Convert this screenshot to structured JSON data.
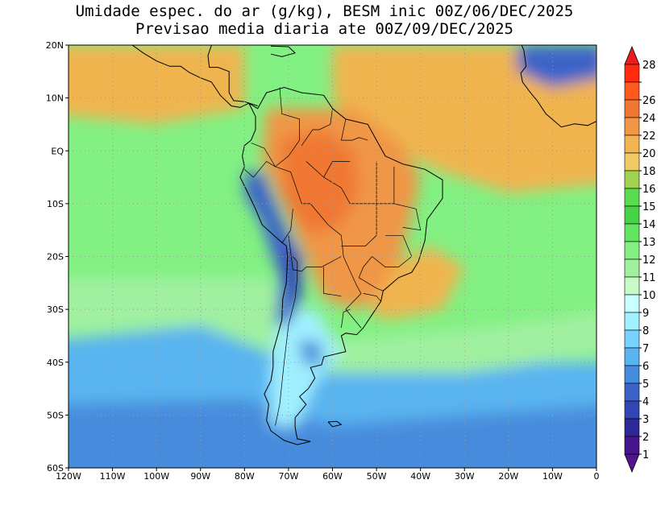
{
  "title_line1": "Umidade espec. do ar (g/kg), BESM inic 00Z/06/DEC/2025",
  "title_line2": "Previsao media diaria ate 00Z/09/DEC/2025",
  "lon_ticks": [
    {
      "lon": -120,
      "label": "120W"
    },
    {
      "lon": -110,
      "label": "110W"
    },
    {
      "lon": -100,
      "label": "100W"
    },
    {
      "lon": -90,
      "label": "90W"
    },
    {
      "lon": -80,
      "label": "80W"
    },
    {
      "lon": -70,
      "label": "70W"
    },
    {
      "lon": -60,
      "label": "60W"
    },
    {
      "lon": -50,
      "label": "50W"
    },
    {
      "lon": -40,
      "label": "40W"
    },
    {
      "lon": -30,
      "label": "30W"
    },
    {
      "lon": -20,
      "label": "20W"
    },
    {
      "lon": -10,
      "label": "10W"
    },
    {
      "lon": 0,
      "label": "0"
    }
  ],
  "lat_ticks": [
    {
      "lat": 20,
      "label": "20N"
    },
    {
      "lat": 10,
      "label": "10N"
    },
    {
      "lat": 0,
      "label": "EQ"
    },
    {
      "lat": -10,
      "label": "10S"
    },
    {
      "lat": -20,
      "label": "20S"
    },
    {
      "lat": -30,
      "label": "30S"
    },
    {
      "lat": -40,
      "label": "40S"
    },
    {
      "lat": -50,
      "label": "50S"
    },
    {
      "lat": -60,
      "label": "60S"
    }
  ],
  "extent": {
    "lon_min": -120,
    "lon_max": 0,
    "lat_min": -60,
    "lat_max": 20
  },
  "colorbar": {
    "levels": [
      "28",
      "26",
      "24",
      "22",
      "20",
      "18",
      "16",
      "15",
      "14",
      "13",
      "12",
      "11",
      "10",
      "9",
      "8",
      "7",
      "6",
      "5",
      "4",
      "3",
      "2",
      "1"
    ],
    "colors": [
      "#ff2a10",
      "#ff5a1e",
      "#f07832",
      "#f09646",
      "#f0b450",
      "#f0c864",
      "#a0d250",
      "#5adc50",
      "#46d246",
      "#64e664",
      "#82f082",
      "#a0f0a0",
      "#c8fac8",
      "#c8ffff",
      "#a0f0ff",
      "#78d2ff",
      "#5ab4f0",
      "#468cdc",
      "#3c64c8",
      "#3246b4",
      "#2d2896",
      "#46148c"
    ],
    "top_arrow_color": "#e61e1e",
    "bottom_arrow_color": "#50148c"
  },
  "field_colors": {
    "ocean_base": "#82f082",
    "tropical_atlantic": "#f0b450",
    "tropical_pacific_north": "#f0b450",
    "amazon_core": "#f07832",
    "brazil_south": "#f09646",
    "andes": "#3c64c8",
    "atacama": "#3246b4",
    "patagonia": "#a0f0ff",
    "southern_ocean": "#5ab4f0",
    "southern_deep": "#468cdc",
    "sahara": "#3c64c8",
    "midlat_band": "#a0f0a0"
  },
  "coast_color": "#000000"
}
